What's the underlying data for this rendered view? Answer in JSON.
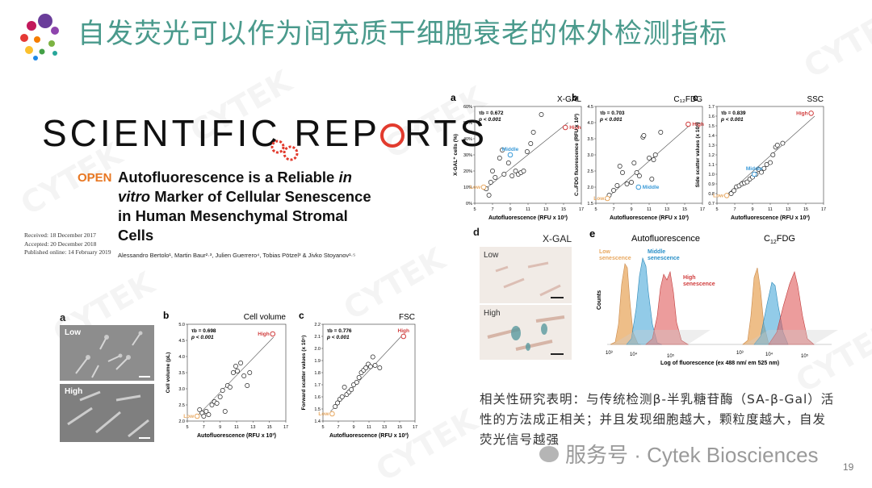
{
  "slide": {
    "title": "自发荧光可以作为间充质干细胞衰老的体外检测指标",
    "page_number": "19",
    "watermark_text": "CYTEK",
    "footer_watermark": "服务号 · Cytek Biosciences",
    "caption": "相关性研究表明：与传统检测β-半乳糖苷酶（SA-β-Gal）活性的方法成正相关；并且发现细胞越大，颗粒度越大，自发荧光信号越强"
  },
  "paper": {
    "journal_logo_left": "SCIENTIFIC REP",
    "journal_logo_right": "RTS",
    "open_label": "OPEN",
    "title_line1_a": "Autofluorescence is a Reliable ",
    "title_line1_b": "in",
    "title_line2_a": "vitro",
    "title_line2_b": " Marker of Cellular Senescence",
    "title_line3": "in Human Mesenchymal Stromal",
    "title_line4": "Cells",
    "received": "Received: 18 December 2017",
    "accepted": "Accepted: 20 December 2018",
    "published": "Published online: 14 February 2019",
    "authors": "Alessandro Bertolo¹, Martin Baur²·³, Julien Guerrero⁴, Tobias Pötzel³ & Jivko Stoyanov¹·⁵"
  },
  "micrographs": {
    "panel_letter": "a",
    "low_label": "Low",
    "high_label": "High"
  },
  "stain_panel": {
    "panel_letter": "d",
    "title": "X-GAL",
    "low_label": "Low",
    "high_label": "High"
  },
  "histograms": {
    "panel_letter": "e",
    "title_left": "Autofluorescence",
    "title_right_c": "C",
    "title_right_sub": "12",
    "title_right_rest": "FDG",
    "ylabel": "Counts",
    "xlabel": "Log of fluorescence (ex 488 nm/ em 525 nm)",
    "tick_labels": [
      "10³",
      "10⁴",
      "10⁵",
      "10³",
      "10⁴",
      "10⁵"
    ],
    "low_label_1": "Low",
    "low_label_2": "senescence",
    "middle_label_1": "Middle",
    "middle_label_2": "senescence",
    "high_label_1": "High",
    "high_label_2": "senescence",
    "colors": {
      "low": "#e8a860",
      "middle": "#4aa8d8",
      "high": "#e05a5a"
    }
  },
  "chart_data": [
    {
      "id": "xgal",
      "type": "scatter",
      "panel_letter": "a",
      "title": "X-GAL",
      "xlabel": "Autofluorescence (RFU x 10³)",
      "ylabel": "X-GAL⁺ cells (%)",
      "xlim": [
        5,
        17
      ],
      "ylim": [
        0,
        60
      ],
      "x_ticks": [
        5,
        7,
        9,
        11,
        13,
        15,
        17
      ],
      "y_ticks": [
        0,
        10,
        20,
        30,
        40,
        50,
        60
      ],
      "y_tick_labels": [
        "0%",
        "10%",
        "20%",
        "30%",
        "40%",
        "50%",
        "60%"
      ],
      "stat_tau": "τb = 0.672",
      "stat_p": "p < 0.001",
      "trend": [
        [
          6,
          8
        ],
        [
          15.5,
          50
        ]
      ],
      "points": [
        [
          6.3,
          9
        ],
        [
          6.6,
          5
        ],
        [
          6.8,
          13
        ],
        [
          7,
          20
        ],
        [
          7.3,
          16
        ],
        [
          7.8,
          28
        ],
        [
          8.1,
          33
        ],
        [
          8.3,
          18
        ],
        [
          8.8,
          25
        ],
        [
          9.2,
          17
        ],
        [
          9.6,
          20
        ],
        [
          9.9,
          18
        ],
        [
          10.2,
          19
        ],
        [
          10.5,
          20
        ],
        [
          10.9,
          32
        ],
        [
          11.3,
          37
        ],
        [
          11.6,
          44
        ],
        [
          12.5,
          55
        ]
      ],
      "highlights": [
        {
          "label": "Low",
          "x": 6.0,
          "y": 10,
          "color": "#e8a860",
          "pos": "left"
        },
        {
          "label": "Middle",
          "x": 9.0,
          "y": 30,
          "color": "#3a9ad8",
          "pos": "up"
        },
        {
          "label": "High",
          "x": 15.2,
          "y": 47,
          "color": "#d03c3c",
          "pos": "right"
        }
      ]
    },
    {
      "id": "c12fdg",
      "type": "scatter",
      "panel_letter": "b",
      "title": "C₁₂FDG",
      "xlabel": "Autofluorescence (RFU x 10³)",
      "ylabel": "C₁₂FDG fluorescence (RFU x 10³)",
      "xlim": [
        5,
        17
      ],
      "ylim": [
        1.5,
        4.5
      ],
      "x_ticks": [
        5,
        7,
        9,
        11,
        13,
        15,
        17
      ],
      "y_ticks": [
        1.5,
        2.0,
        2.5,
        3.0,
        3.5,
        4.0,
        4.5
      ],
      "y_tick_labels": [
        "1.5",
        "2.0",
        "2.5",
        "3.0",
        "3.5",
        "4.0",
        "4.5"
      ],
      "stat_tau": "τb = 0.703",
      "stat_p": "p < 0.001",
      "trend": [
        [
          6,
          1.6
        ],
        [
          15.5,
          3.9
        ]
      ],
      "points": [
        [
          6.5,
          1.75
        ],
        [
          7,
          1.9
        ],
        [
          7.4,
          2.05
        ],
        [
          7.7,
          2.65
        ],
        [
          8,
          2.45
        ],
        [
          8.5,
          2.1
        ],
        [
          9,
          2.15
        ],
        [
          9.3,
          2.75
        ],
        [
          9.6,
          2.45
        ],
        [
          9.9,
          2.35
        ],
        [
          10.3,
          3.55
        ],
        [
          10.4,
          3.6
        ],
        [
          11,
          2.9
        ],
        [
          11.3,
          2.25
        ],
        [
          11.5,
          2.85
        ],
        [
          11.7,
          3.0
        ],
        [
          12.3,
          3.7
        ]
      ],
      "highlights": [
        {
          "label": "Low",
          "x": 6.3,
          "y": 1.65,
          "color": "#e8a860",
          "pos": "left"
        },
        {
          "label": "Middle",
          "x": 9.8,
          "y": 2.0,
          "color": "#3a9ad8",
          "pos": "right"
        },
        {
          "label": "High",
          "x": 15.4,
          "y": 3.95,
          "color": "#d03c3c",
          "pos": "right"
        }
      ]
    },
    {
      "id": "ssc",
      "type": "scatter",
      "panel_letter": "c",
      "title": "SSC",
      "xlabel": "Autofluorescence (RFU x 10³)",
      "ylabel": "Side scatter values (x 10⁵)",
      "xlim": [
        5,
        17
      ],
      "ylim": [
        0.7,
        1.7
      ],
      "x_ticks": [
        5,
        7,
        9,
        11,
        13,
        15,
        17
      ],
      "y_ticks": [
        0.7,
        0.8,
        0.9,
        1.0,
        1.1,
        1.2,
        1.3,
        1.4,
        1.5,
        1.6,
        1.7
      ],
      "y_tick_labels": [
        "0.7",
        "0.8",
        "0.9",
        "1.0",
        "1.1",
        "1.2",
        "1.3",
        "1.4",
        "1.5",
        "1.6",
        "1.7"
      ],
      "stat_tau": "τb = 0.839",
      "stat_p": "p < 0.001",
      "trend": [
        [
          6,
          0.78
        ],
        [
          16,
          1.6
        ]
      ],
      "points": [
        [
          6.6,
          0.8
        ],
        [
          6.9,
          0.83
        ],
        [
          7.2,
          0.87
        ],
        [
          7.5,
          0.88
        ],
        [
          7.8,
          0.9
        ],
        [
          8.1,
          0.91
        ],
        [
          8.4,
          0.92
        ],
        [
          8.7,
          0.95
        ],
        [
          9,
          0.97
        ],
        [
          9.4,
          1.0
        ],
        [
          9.7,
          1.05
        ],
        [
          10,
          1.02
        ],
        [
          10.3,
          1.06
        ],
        [
          10.6,
          1.1
        ],
        [
          11,
          1.12
        ],
        [
          11.3,
          1.2
        ],
        [
          11.6,
          1.28
        ],
        [
          11.8,
          1.3
        ],
        [
          12.4,
          1.32
        ]
      ],
      "highlights": [
        {
          "label": "Low",
          "x": 6.1,
          "y": 0.78,
          "color": "#e8a860",
          "pos": "left"
        },
        {
          "label": "Middle",
          "x": 9.2,
          "y": 1.0,
          "color": "#3a9ad8",
          "pos": "up"
        },
        {
          "label": "High",
          "x": 15.6,
          "y": 1.63,
          "color": "#d03c3c",
          "pos": "left"
        }
      ]
    },
    {
      "id": "cellvol",
      "type": "scatter",
      "panel_letter": "b",
      "title": "Cell volume",
      "xlabel": "Autofluorescence (RFU x 10³)",
      "ylabel": "Cell volume (pL)",
      "xlim": [
        5,
        17
      ],
      "ylim": [
        2.0,
        5.0
      ],
      "x_ticks": [
        5,
        7,
        9,
        11,
        13,
        15,
        17
      ],
      "y_ticks": [
        2.0,
        2.5,
        3.0,
        3.5,
        4.0,
        4.5,
        5.0
      ],
      "y_tick_labels": [
        "2.0",
        "2.5",
        "3.0",
        "3.5",
        "4.0",
        "4.5",
        "5.0"
      ],
      "stat_tau": "τb = 0.698",
      "stat_p": "p < 0.001",
      "trend": [
        [
          6,
          2.1
        ],
        [
          15.5,
          4.6
        ]
      ],
      "points": [
        [
          6.5,
          2.35
        ],
        [
          6.8,
          2.25
        ],
        [
          7,
          2.15
        ],
        [
          7.3,
          2.3
        ],
        [
          7.6,
          2.2
        ],
        [
          8,
          2.5
        ],
        [
          8.3,
          2.6
        ],
        [
          8.6,
          2.55
        ],
        [
          9,
          2.75
        ],
        [
          9.3,
          2.95
        ],
        [
          9.6,
          2.3
        ],
        [
          9.9,
          3.1
        ],
        [
          10.2,
          3.05
        ],
        [
          10.6,
          3.5
        ],
        [
          10.9,
          3.7
        ],
        [
          11.1,
          3.55
        ],
        [
          11.5,
          3.8
        ],
        [
          11.9,
          3.4
        ],
        [
          12.3,
          3.1
        ],
        [
          12.6,
          3.5
        ]
      ],
      "highlights": [
        {
          "label": "Low",
          "x": 6.2,
          "y": 2.15,
          "color": "#e8a860",
          "pos": "left"
        },
        {
          "label": "High",
          "x": 15.4,
          "y": 4.7,
          "color": "#d03c3c",
          "pos": "left"
        }
      ]
    },
    {
      "id": "fsc",
      "type": "scatter",
      "panel_letter": "c",
      "title": "FSC",
      "xlabel": "Autofluorescence (RFU x 10³)",
      "ylabel": "Forward scatter values (x 10⁵)",
      "xlim": [
        5,
        17
      ],
      "ylim": [
        1.4,
        2.2
      ],
      "x_ticks": [
        5,
        7,
        9,
        11,
        13,
        15,
        17
      ],
      "y_ticks": [
        1.4,
        1.5,
        1.6,
        1.7,
        1.8,
        1.9,
        2.0,
        2.1,
        2.2
      ],
      "y_tick_labels": [
        "1.4",
        "1.5",
        "1.6",
        "1.7",
        "1.8",
        "1.9",
        "2.0",
        "2.1",
        "2.2"
      ],
      "stat_tau": "τb = 0.776",
      "stat_p": "p < 0.001",
      "trend": [
        [
          6,
          1.48
        ],
        [
          15.5,
          2.12
        ]
      ],
      "points": [
        [
          6.6,
          1.52
        ],
        [
          6.9,
          1.55
        ],
        [
          7.2,
          1.58
        ],
        [
          7.5,
          1.6
        ],
        [
          7.8,
          1.68
        ],
        [
          8.1,
          1.62
        ],
        [
          8.4,
          1.64
        ],
        [
          8.7,
          1.66
        ],
        [
          9,
          1.7
        ],
        [
          9.4,
          1.72
        ],
        [
          9.7,
          1.76
        ],
        [
          10,
          1.8
        ],
        [
          10.3,
          1.82
        ],
        [
          10.6,
          1.84
        ],
        [
          10.9,
          1.87
        ],
        [
          11.2,
          1.85
        ],
        [
          11.5,
          1.93
        ],
        [
          11.8,
          1.86
        ],
        [
          12.4,
          1.84
        ]
      ],
      "highlights": [
        {
          "label": "Low",
          "x": 6.2,
          "y": 1.46,
          "color": "#e8a860",
          "pos": "left"
        },
        {
          "label": "High",
          "x": 15.5,
          "y": 2.1,
          "color": "#d03c3c",
          "pos": "up"
        }
      ]
    }
  ]
}
